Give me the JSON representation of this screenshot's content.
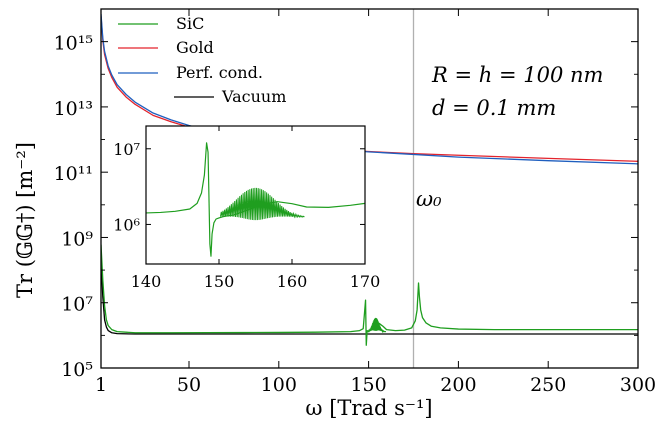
{
  "chart_data": [
    {
      "type": "line",
      "xlabel": "ω [Trad s⁻¹]",
      "ylabel": "Tr (𝔾𝔾†) [m⁻²]",
      "xscale": "linear",
      "yscale": "log",
      "xlim": [
        1,
        300
      ],
      "ylim": [
        100000,
        1e+16
      ],
      "xticks": [
        1,
        50,
        100,
        150,
        200,
        250,
        300
      ],
      "xtick_labels": [
        "1",
        "50",
        "100",
        "150",
        "200",
        "250",
        "300"
      ],
      "yticks": [
        100000,
        10000000,
        1000000000,
        100000000000,
        10000000000000,
        1000000000000000
      ],
      "ytick_labels": [
        "10⁵",
        "10⁷",
        "10⁹",
        "10¹¹",
        "10¹³",
        "10¹⁵"
      ],
      "grid": false,
      "legend_position": "top-left",
      "vline": {
        "x": 175,
        "label": "ω₀",
        "color": "#b0b0b0"
      },
      "annotations": [
        "R = h = 100 nm",
        "d = 0.1 mm"
      ],
      "series": [
        {
          "name": "SiC",
          "color": "#1f9e1f",
          "x": [
            1,
            2,
            3,
            4,
            5,
            7,
            10,
            20,
            40,
            60,
            80,
            100,
            120,
            140,
            145,
            147,
            148.3,
            148.7,
            149.2,
            150,
            152,
            154,
            156,
            158,
            160,
            165,
            170,
            174,
            176,
            177,
            177.8,
            178.3,
            179,
            180,
            182,
            185,
            190,
            200,
            220,
            250,
            280,
            300
          ],
          "y": [
            600000000,
            50000000,
            8000000,
            3000000,
            2000000,
            1500000,
            1300000,
            1200000,
            1200000,
            1210000,
            1220000,
            1230000,
            1250000,
            1300000,
            1400000,
            1600000,
            12000000,
            500000,
            1400000,
            1300000,
            1600000,
            2200000,
            2300000,
            1900000,
            1500000,
            1400000,
            1450000,
            1700000,
            2800000,
            6000000,
            40000000,
            15000000,
            6000000,
            3500000,
            2400000,
            1900000,
            1700000,
            1560000,
            1500000,
            1500000,
            1500000,
            1500000
          ]
        },
        {
          "name": "Gold",
          "color": "#e3232c",
          "x": [
            1,
            2,
            3,
            5,
            7,
            10,
            15,
            20,
            30,
            40,
            50,
            70,
            100,
            130,
            150,
            175,
            200,
            250,
            300
          ],
          "y": [
            6000000000000000,
            1100000000000000,
            400000000000000,
            150000000000000,
            80000000000000,
            40000000000000,
            20000000000000,
            12000000000000,
            5500000000000,
            3500000000000,
            2400000000000,
            1300000000000,
            720000000000,
            500000000000,
            430000000000,
            370000000000,
            330000000000,
            265000000000,
            215000000000
          ]
        },
        {
          "name": "Perf. cond.",
          "color": "#1f5fbf",
          "x": [
            1,
            2,
            3,
            5,
            7,
            10,
            15,
            20,
            30,
            40,
            50,
            70,
            100,
            130,
            150,
            175,
            200,
            250,
            300
          ],
          "y": [
            7000000000000000,
            1300000000000000,
            500000000000000,
            180000000000000,
            95000000000000,
            48000000000000,
            24000000000000,
            14000000000000,
            6500000000000,
            4000000000000,
            2700000000000,
            1400000000000,
            750000000000,
            500000000000,
            420000000000,
            350000000000,
            290000000000,
            225000000000,
            180000000000
          ]
        },
        {
          "name": "Vacuum",
          "color": "#000000",
          "x": [
            1,
            2,
            3,
            4,
            5,
            7,
            10,
            20,
            50,
            100,
            150,
            200,
            250,
            300
          ],
          "y": [
            200000000,
            15000000,
            3000000,
            1800000,
            1400000,
            1200000,
            1130000,
            1100000,
            1100000,
            1100000,
            1100000,
            1100000,
            1100000,
            1100000
          ]
        }
      ]
    },
    {
      "type": "line",
      "xscale": "linear",
      "yscale": "log",
      "xlim": [
        140,
        170
      ],
      "ylim": [
        300000,
        20000000
      ],
      "xticks": [
        140,
        150,
        160,
        170
      ],
      "xtick_labels": [
        "140",
        "150",
        "160",
        "170"
      ],
      "yticks": [
        1000000,
        10000000
      ],
      "ytick_labels": [
        "10⁶",
        "10⁷"
      ],
      "series": [
        {
          "color": "#1f9e1f",
          "x": [
            140,
            142,
            144,
            146,
            147,
            147.6,
            148,
            148.3,
            148.5,
            148.6,
            148.75,
            148.9,
            149.05,
            149.3,
            149.6,
            150,
            150.5,
            151,
            152,
            154,
            156,
            158,
            160,
            162,
            165,
            168,
            170
          ],
          "y": [
            1420000,
            1440000,
            1490000,
            1600000,
            1900000,
            2600000,
            4500000,
            12000000,
            9000000,
            3000000,
            550000,
            380000,
            750000,
            1050000,
            1180000,
            1220000,
            1260000,
            1290000,
            1330000,
            1560000,
            1850000,
            2000000,
            1880000,
            1700000,
            1680000,
            1790000,
            1900000
          ]
        }
      ]
    }
  ]
}
